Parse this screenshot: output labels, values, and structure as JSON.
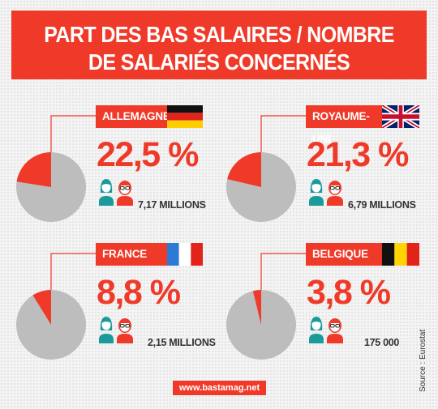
{
  "header": {
    "title_line1": "PART DES BAS SALAIRES / NOMBRE",
    "title_line2": "DE SALARIÉS CONCERNÉS"
  },
  "chart_data": {
    "type": "pie",
    "title": "PART DES BAS SALAIRES / NOMBRE DE SALARIÉS CONCERNÉS",
    "unit": "%",
    "items": [
      {
        "country": "ALLEMAGNE",
        "percent_label": "22,5 %",
        "value": 22.5,
        "employees_label": "7,17 MILLIONS",
        "flag": "germany"
      },
      {
        "country": "ROYAUME-UNI",
        "percent_label": "21,3 %",
        "value": 21.3,
        "employees_label": "6,79 MILLIONS",
        "flag": "united-kingdom"
      },
      {
        "country": "FRANCE",
        "percent_label": "8,8 %",
        "value": 8.8,
        "employees_label": "2,15 MILLIONS",
        "flag": "france"
      },
      {
        "country": "BELGIQUE",
        "percent_label": "3,8 %",
        "value": 3.8,
        "employees_label": "175 000",
        "flag": "belgium"
      }
    ]
  },
  "colors": {
    "accent": "#f03a29",
    "pie_rest": "#bdbdbd",
    "people_teal": "#1a9a9a"
  },
  "footer": {
    "url": "www.bastamag.net",
    "source": "Source : Eurostat"
  }
}
